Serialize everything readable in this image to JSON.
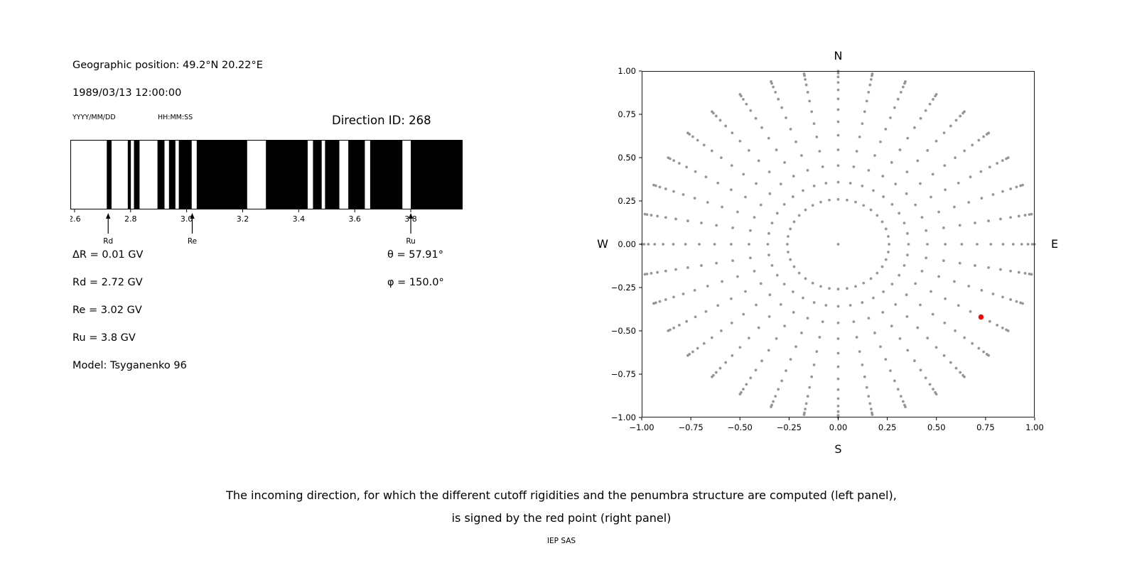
{
  "header": {
    "geo_position": "Geographic position: 49.2°N 20.22°E",
    "datetime": "1989/03/13 12:00:00",
    "date_format_label": "YYYY/MM/DD",
    "time_format_label": "HH:MM:SS",
    "direction_id_label": "Direction ID: 268"
  },
  "left_panel": {
    "rows": [
      "ΔR = 0.01 GV",
      "Rd = 2.72 GV",
      "Re = 3.02 GV",
      "Ru = 3.8 GV",
      "Model: Tsyganenko 96"
    ],
    "theta_label": "θ = 57.91°",
    "phi_label": "φ = 150.0°"
  },
  "chart_data": [
    {
      "id": "penumbra",
      "type": "bar",
      "title": "",
      "xlim": [
        2.585,
        3.985
      ],
      "xtick_values": [
        2.6,
        2.8,
        3.0,
        3.2,
        3.4,
        3.6,
        3.8
      ],
      "xtick_labels": [
        "2.6",
        "2.8",
        "3.0",
        "3.2",
        "3.4",
        "3.6",
        "3.8"
      ],
      "black_intervals": [
        [
          2.715,
          2.732
        ],
        [
          2.79,
          2.801
        ],
        [
          2.812,
          2.832
        ],
        [
          2.896,
          2.921
        ],
        [
          2.937,
          2.96
        ],
        [
          2.972,
          3.018
        ],
        [
          3.036,
          3.216
        ],
        [
          3.283,
          3.432
        ],
        [
          3.451,
          3.482
        ],
        [
          3.494,
          3.545
        ],
        [
          3.577,
          3.636
        ],
        [
          3.655,
          3.77
        ],
        [
          3.8,
          3.985
        ]
      ],
      "markers": [
        {
          "label": "Rd",
          "value": 2.72
        },
        {
          "label": "Re",
          "value": 3.02
        },
        {
          "label": "Ru",
          "value": 3.8
        }
      ],
      "values": {
        "delta_R_GV": 0.01,
        "Rd_GV": 2.72,
        "Re_GV": 3.02,
        "Ru_GV": 3.8,
        "theta_deg": 57.91,
        "phi_deg": 150.0
      },
      "bar_color": "#000000",
      "background": "#ffffff"
    },
    {
      "id": "directions",
      "type": "scatter",
      "xlim": [
        -1,
        1
      ],
      "ylim": [
        -1,
        1
      ],
      "xtick_values": [
        -1,
        -0.75,
        -0.5,
        -0.25,
        0,
        0.25,
        0.5,
        0.75,
        1
      ],
      "xtick_labels": [
        "−1.00",
        "−0.75",
        "−0.50",
        "−0.25",
        "0.00",
        "0.25",
        "0.50",
        "0.75",
        "1.00"
      ],
      "ytick_values": [
        -1,
        -0.75,
        -0.5,
        -0.25,
        0,
        0.25,
        0.5,
        0.75,
        1
      ],
      "ytick_labels": [
        "−1.00",
        "−0.75",
        "−0.50",
        "−0.25",
        "0.00",
        "0.25",
        "0.50",
        "0.75",
        "1.00"
      ],
      "compass": {
        "top": "N",
        "bottom": "S",
        "left": "W",
        "right": "E"
      },
      "grid_points": {
        "azimuth_start_deg": 0,
        "azimuth_step_deg": 10,
        "azimuth_count": 36,
        "ring_radii": [
          0.259,
          0.358,
          0.454,
          0.545,
          0.629,
          0.707,
          0.777,
          0.839,
          0.891,
          0.934,
          0.966,
          0.988,
          0.999
        ],
        "include_center_point": true
      },
      "point_color": "#8c8c8c",
      "selected_point": {
        "x": 0.727,
        "y": -0.42,
        "color": "#ff0000"
      }
    }
  ],
  "caption": {
    "line1": "The incoming direction, for which the different cutoff rigidities and the penumbra structure are computed (left panel),",
    "line2": "is signed by the red point (right panel)"
  },
  "credit": "IEP SAS"
}
